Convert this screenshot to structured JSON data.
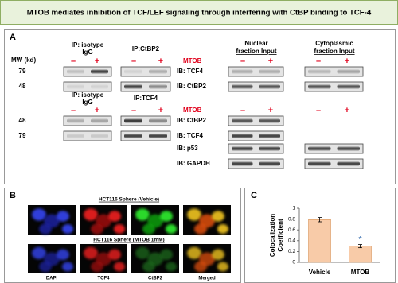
{
  "title": "MTOB mediates inhibition of TCF/LEF signaling through interfering with CtBP binding to TCF-4",
  "panel_a": {
    "label": "A",
    "header1": {
      "isotype": [
        "IP: isotype",
        "IgG"
      ],
      "ip": "IP:CtBP2",
      "nuclear": [
        "Nuclear",
        "fraction Input"
      ],
      "cytoplasmic": [
        "Cytoplasmic",
        "fraction Input"
      ]
    },
    "mw_label": "MW (kd)",
    "treatment1": "MTOB",
    "signs1": [
      "–",
      "+",
      "–",
      "+",
      "–",
      "+",
      "–",
      "+"
    ],
    "blots1": [
      {
        "mw": "79",
        "ib": "IB: TCF4"
      },
      {
        "mw": "48",
        "ib": "IB: CtBP2"
      }
    ],
    "header2": {
      "isotype": [
        "IP: isotype",
        "IgG"
      ],
      "ip": "IP:TCF4"
    },
    "treatment2": "MTOB",
    "signs2": [
      "–",
      "+",
      "–",
      "+",
      "–",
      "+",
      "–",
      "+"
    ],
    "blots2": [
      {
        "mw": "48",
        "ib": "IB: CtBP2"
      },
      {
        "mw": "79",
        "ib": "IB: TCF4"
      },
      {
        "ib": "IB: p53"
      },
      {
        "ib": "IB: GAPDH"
      }
    ]
  },
  "panel_b": {
    "label": "B",
    "row1": "HCT116 Sphere (Vehicle)",
    "row2": "HCT116 Sphere (MTOB 1mM)",
    "channels": [
      "DAPI",
      "TCF4",
      "CtBP2",
      "Merged"
    ]
  },
  "panel_c": {
    "label": "C"
  },
  "chart_data": {
    "type": "bar",
    "ylabel": [
      "Colocalization",
      "Coefficient"
    ],
    "categories": [
      "Vehicle",
      "MTOB"
    ],
    "values": [
      0.79,
      0.3
    ],
    "errors": [
      0.04,
      0.03
    ],
    "color": "#f8cba8",
    "ylim": [
      0,
      1
    ],
    "yticks": [
      0,
      0.2,
      0.4,
      0.6,
      0.8,
      1
    ],
    "annotation": "*"
  }
}
